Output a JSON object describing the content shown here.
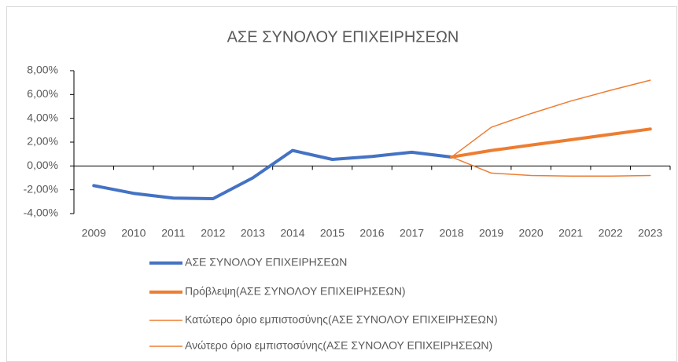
{
  "chart_data": {
    "type": "line",
    "title": "ΑΣΕ ΣΥΝΟΛΟΥ ΕΠΙΧΕΙΡΗΣΕΩΝ",
    "categories": [
      "2009",
      "2010",
      "2011",
      "2012",
      "2013",
      "2014",
      "2015",
      "2016",
      "2017",
      "2018",
      "2019",
      "2020",
      "2021",
      "2022",
      "2023"
    ],
    "series": [
      {
        "name": "ΑΣΕ ΣΥΝΟΛΟΥ ΕΠΙΧΕΙΡΗΣΕΩΝ",
        "color": "#4472c4",
        "width": 4,
        "values": [
          -1.65,
          -2.3,
          -2.7,
          -2.75,
          -1.0,
          1.3,
          0.55,
          0.8,
          1.15,
          0.75,
          null,
          null,
          null,
          null,
          null
        ]
      },
      {
        "name": "Πρόβλεψη(ΑΣΕ ΣΥΝΟΛΟΥ ΕΠΙΧΕΙΡΗΣΕΩΝ)",
        "color": "#ed7d31",
        "width": 4,
        "values": [
          null,
          null,
          null,
          null,
          null,
          null,
          null,
          null,
          null,
          0.75,
          1.3,
          1.75,
          2.2,
          2.65,
          3.1
        ]
      },
      {
        "name": "Κατώτερο όριο εμπιστοσύνης(ΑΣΕ ΣΥΝΟΛΟΥ ΕΠΙΧΕΙΡΗΣΕΩΝ)",
        "color": "#ed7d31",
        "width": 1.5,
        "values": [
          null,
          null,
          null,
          null,
          null,
          null,
          null,
          null,
          null,
          0.75,
          -0.6,
          -0.8,
          -0.85,
          -0.85,
          -0.8
        ]
      },
      {
        "name": "Ανώτερο όριο εμπιστοσύνης(ΑΣΕ ΣΥΝΟΛΟΥ ΕΠΙΧΕΙΡΗΣΕΩΝ)",
        "color": "#ed7d31",
        "width": 1.5,
        "values": [
          null,
          null,
          null,
          null,
          null,
          null,
          null,
          null,
          null,
          0.75,
          3.25,
          4.4,
          5.45,
          6.35,
          7.2
        ]
      }
    ],
    "ylim": [
      -4,
      8
    ],
    "yticks": [
      {
        "value": -4,
        "label": "-4,00%"
      },
      {
        "value": -2,
        "label": "-2,00%"
      },
      {
        "value": 0,
        "label": "0,00%"
      },
      {
        "value": 2,
        "label": "2,00%"
      },
      {
        "value": 4,
        "label": "4,00%"
      },
      {
        "value": 6,
        "label": "6,00%"
      },
      {
        "value": 8,
        "label": "8,00%"
      }
    ],
    "grid": false,
    "legend": "bottom"
  }
}
